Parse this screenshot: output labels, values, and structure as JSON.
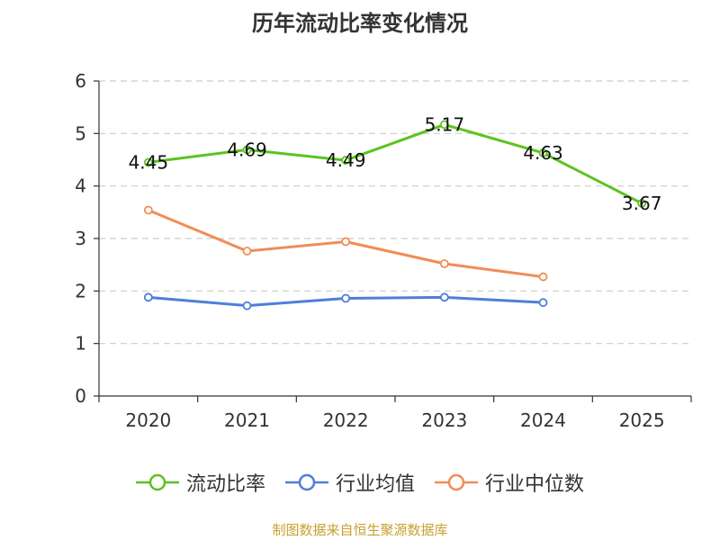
{
  "chart_data": {
    "type": "line",
    "title": "历年流动比率变化情况",
    "categories": [
      "2020",
      "2021",
      "2022",
      "2023",
      "2024",
      "2025"
    ],
    "ylim": [
      0,
      6
    ],
    "yticks": [
      "0",
      "1",
      "2",
      "3",
      "4",
      "5",
      "6"
    ],
    "grid": true,
    "series": [
      {
        "name": "流动比率",
        "color": "#5cc320",
        "values": [
          4.45,
          4.69,
          4.49,
          5.17,
          4.63,
          3.67
        ],
        "labels": [
          "4.45",
          "4.69",
          "4.49",
          "5.17",
          "4.63",
          "3.67"
        ]
      },
      {
        "name": "行业均值",
        "color": "#4e7fd8",
        "values": [
          1.88,
          1.72,
          1.86,
          1.88,
          1.78,
          null
        ]
      },
      {
        "name": "行业中位数",
        "color": "#f28c56",
        "values": [
          3.54,
          2.76,
          2.94,
          2.52,
          2.27,
          null
        ]
      }
    ],
    "legend_position": "bottom"
  },
  "source": "制图数据来自恒生聚源数据库"
}
